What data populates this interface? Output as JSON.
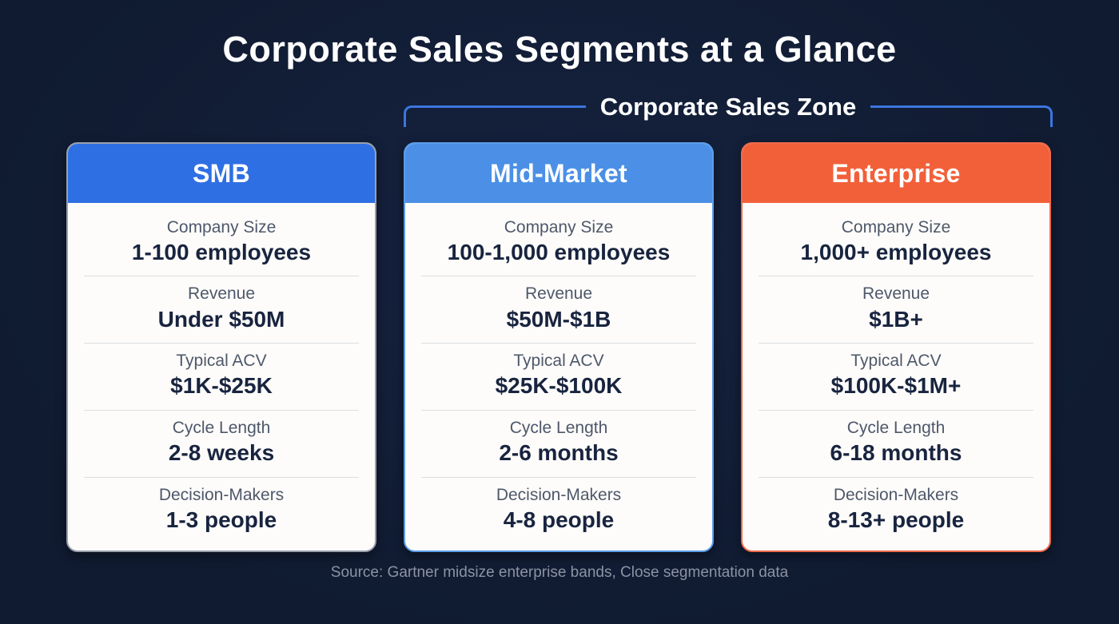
{
  "page": {
    "title": "Corporate Sales Segments at a Glance",
    "zone_label": "Corporate Sales Zone",
    "source": "Source: Gartner midsize enterprise bands, Close segmentation data"
  },
  "colors": {
    "background": "#111c33",
    "bracket": "#3b76e0",
    "smb_header": "#2f6fe4",
    "mid_header": "#4b90e6",
    "enterprise_header": "#f2603a",
    "smb_border": "#99a0ac",
    "mid_border": "#5b9de9",
    "enterprise_border": "#ef6a4a",
    "card_body": "#fdfcfa",
    "divider": "#dcdee3",
    "label_text": "#4e586a",
    "value_text": "#18243f"
  },
  "cards": [
    {
      "id": "smb",
      "title": "SMB",
      "rows": [
        {
          "label": "Company Size",
          "value": "1-100 employees"
        },
        {
          "label": "Revenue",
          "value": "Under $50M"
        },
        {
          "label": "Typical ACV",
          "value": "$1K-$25K"
        },
        {
          "label": "Cycle Length",
          "value": "2-8 weeks"
        },
        {
          "label": "Decision-Makers",
          "value": "1-3 people"
        }
      ]
    },
    {
      "id": "mid-market",
      "title": "Mid-Market",
      "rows": [
        {
          "label": "Company Size",
          "value": "100-1,000 employees"
        },
        {
          "label": "Revenue",
          "value": "$50M-$1B"
        },
        {
          "label": "Typical ACV",
          "value": "$25K-$100K"
        },
        {
          "label": "Cycle Length",
          "value": "2-6 months"
        },
        {
          "label": "Decision-Makers",
          "value": "4-8 people"
        }
      ]
    },
    {
      "id": "enterprise",
      "title": "Enterprise",
      "rows": [
        {
          "label": "Company Size",
          "value": "1,000+ employees"
        },
        {
          "label": "Revenue",
          "value": "$1B+"
        },
        {
          "label": "Typical ACV",
          "value": "$100K-$1M+"
        },
        {
          "label": "Cycle Length",
          "value": "6-18 months"
        },
        {
          "label": "Decision-Makers",
          "value": "8-13+ people"
        }
      ]
    }
  ]
}
